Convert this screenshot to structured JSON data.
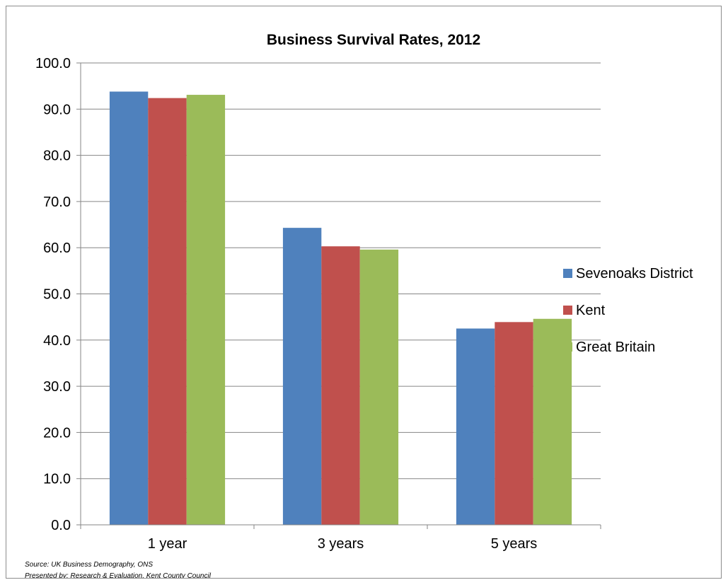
{
  "chart_data": {
    "type": "bar",
    "title": "Business Survival Rates, 2012",
    "categories": [
      "1 year",
      "3 years",
      "5 years"
    ],
    "series": [
      {
        "name": "Sevenoaks District",
        "color": "#4f81bd",
        "values": [
          93.8,
          64.3,
          42.5
        ]
      },
      {
        "name": "Kent",
        "color": "#c0504d",
        "values": [
          92.4,
          60.3,
          43.9
        ]
      },
      {
        "name": "Great Britain",
        "color": "#9bbb59",
        "values": [
          93.1,
          59.6,
          44.6
        ]
      }
    ],
    "ylim": [
      0,
      100
    ],
    "yticks": [
      "0.0",
      "10.0",
      "20.0",
      "30.0",
      "40.0",
      "50.0",
      "60.0",
      "70.0",
      "80.0",
      "90.0",
      "100.0"
    ],
    "xlabel": "",
    "ylabel": "",
    "grid": true,
    "legend": "right"
  },
  "notes": {
    "source": "Source: UK Business Demography, ONS",
    "presented_by": "Presented by: Research & Evaluation, Kent County Council"
  }
}
